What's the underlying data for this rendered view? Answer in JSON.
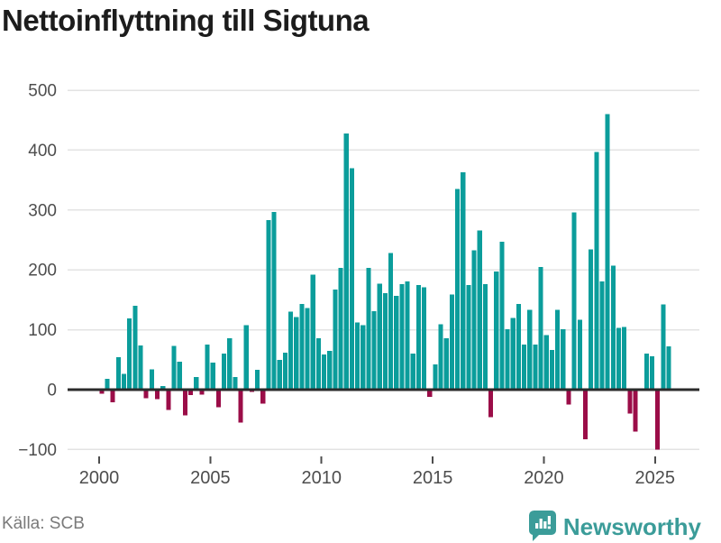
{
  "page": {
    "title": "Nettoinflyttning till Sigtuna"
  },
  "footer": {
    "source": "Källa: SCB",
    "brand": "Newsworthy"
  },
  "icons": {
    "brand_icon": "newsworthy-barchart-pin-icon"
  },
  "colors": {
    "positive": "#0b9d9b",
    "negative": "#9b0d48",
    "grid": "#e3e3e3",
    "zero_line": "#2b2b2b",
    "axis_text": "#4d4d4d",
    "title_text": "#1c1c1c",
    "source_text": "#7a7a7a",
    "brand_teal": "#3b9c99"
  },
  "chart_data": {
    "type": "bar",
    "title": "Nettoinflyttning till Sigtuna",
    "frequency": "quarterly",
    "start": "2000Q1",
    "end": "2025Q3",
    "series_name": "Nettoinflyttning",
    "by_year": [
      {
        "year": 2000,
        "values": [
          -7,
          18,
          -21,
          54
        ]
      },
      {
        "year": 2001,
        "values": [
          26,
          119,
          140,
          74
        ]
      },
      {
        "year": 2002,
        "values": [
          -14,
          34,
          -16,
          6
        ]
      },
      {
        "year": 2003,
        "values": [
          -34,
          73,
          47,
          -43
        ]
      },
      {
        "year": 2004,
        "values": [
          -9,
          21,
          -8,
          75
        ]
      },
      {
        "year": 2005,
        "values": [
          45,
          -29,
          60,
          86
        ]
      },
      {
        "year": 2006,
        "values": [
          21,
          -55,
          108,
          -4
        ]
      },
      {
        "year": 2007,
        "values": [
          33,
          -23,
          283,
          297
        ]
      },
      {
        "year": 2008,
        "values": [
          50,
          62,
          130,
          121
        ]
      },
      {
        "year": 2009,
        "values": [
          143,
          136,
          192,
          86
        ]
      },
      {
        "year": 2010,
        "values": [
          59,
          65,
          167,
          203
        ]
      },
      {
        "year": 2011,
        "values": [
          428,
          370,
          112,
          108
        ]
      },
      {
        "year": 2012,
        "values": [
          203,
          131,
          177,
          161
        ]
      },
      {
        "year": 2013,
        "values": [
          228,
          157,
          176,
          181
        ]
      },
      {
        "year": 2014,
        "values": [
          60,
          175,
          171,
          -12
        ]
      },
      {
        "year": 2015,
        "values": [
          42,
          109,
          86,
          159
        ]
      },
      {
        "year": 2016,
        "values": [
          335,
          363,
          175,
          233
        ]
      },
      {
        "year": 2017,
        "values": [
          266,
          176,
          -46,
          197
        ]
      },
      {
        "year": 2018,
        "values": [
          247,
          101,
          120,
          143
        ]
      },
      {
        "year": 2019,
        "values": [
          75,
          133,
          75,
          205
        ]
      },
      {
        "year": 2020,
        "values": [
          91,
          66,
          133,
          101
        ]
      },
      {
        "year": 2021,
        "values": [
          -25,
          296,
          117,
          -83
        ]
      },
      {
        "year": 2022,
        "values": [
          234,
          397,
          181,
          460
        ]
      },
      {
        "year": 2023,
        "values": [
          207,
          103,
          105,
          -40
        ]
      },
      {
        "year": 2024,
        "values": [
          -70,
          0,
          60,
          56
        ]
      },
      {
        "year": 2025,
        "values": [
          -100,
          142,
          72
        ]
      }
    ],
    "y_ticks": [
      500,
      400,
      300,
      200,
      100,
      0,
      -100
    ],
    "x_ticks": [
      {
        "label": "2000",
        "year": 2000
      },
      {
        "label": "2005",
        "year": 2005
      },
      {
        "label": "2010",
        "year": 2010
      },
      {
        "label": "2015",
        "year": 2015
      },
      {
        "label": "2020",
        "year": 2020
      },
      {
        "label": "2025",
        "year": 2025
      }
    ],
    "ylim": [
      -130,
      510
    ],
    "grid": true,
    "legend": "none"
  }
}
